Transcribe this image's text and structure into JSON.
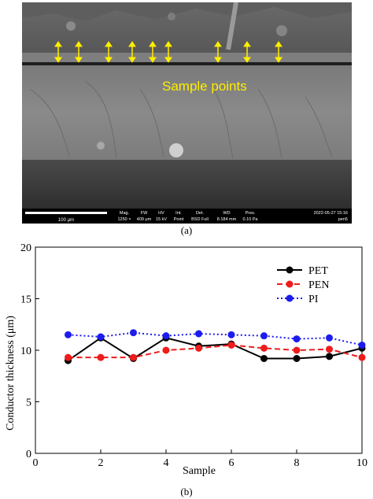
{
  "panel_a": {
    "caption": "(a)",
    "overlay_label": "Sample points",
    "scale_bar": "100 μm",
    "info_bar": {
      "headers": [
        "Mag.",
        "FW",
        "HV",
        "Int.",
        "Det.",
        "WD",
        "Pres."
      ],
      "values": [
        "1250 ×",
        "409 μm",
        "15 kV",
        "Point",
        "BSD Full",
        "8.184 mm",
        "0.10 Pa"
      ],
      "timestamp": "2022-05-27 15:16",
      "user": "pen5"
    },
    "colors": {
      "arrow": "#ffee00",
      "label": "#ffee00"
    }
  },
  "panel_b": {
    "caption": "(b)"
  },
  "chart_data": {
    "type": "line",
    "xlabel": "Sample",
    "ylabel": "Conductor thickness (μm)",
    "xlim": [
      0,
      10
    ],
    "ylim": [
      0,
      20
    ],
    "xticks": [
      0,
      2,
      4,
      6,
      8,
      10
    ],
    "yticks": [
      0,
      5,
      10,
      15,
      20
    ],
    "grid": false,
    "legend_position": "top-right",
    "x": [
      1,
      2,
      3,
      4,
      5,
      6,
      7,
      8,
      9,
      10
    ],
    "series": [
      {
        "name": "PET",
        "color": "#000000",
        "style": "solid",
        "values": [
          9.0,
          11.2,
          9.2,
          11.2,
          10.4,
          10.6,
          9.2,
          9.2,
          9.4,
          10.2
        ]
      },
      {
        "name": "PEN",
        "color": "#ee1c1c",
        "style": "dashed",
        "values": [
          9.3,
          9.3,
          9.3,
          10.0,
          10.2,
          10.5,
          10.2,
          10.0,
          10.1,
          9.3
        ]
      },
      {
        "name": "PI",
        "color": "#1c1cee",
        "style": "dotted",
        "values": [
          11.5,
          11.3,
          11.7,
          11.4,
          11.6,
          11.5,
          11.4,
          11.1,
          11.2,
          10.5
        ]
      }
    ]
  }
}
